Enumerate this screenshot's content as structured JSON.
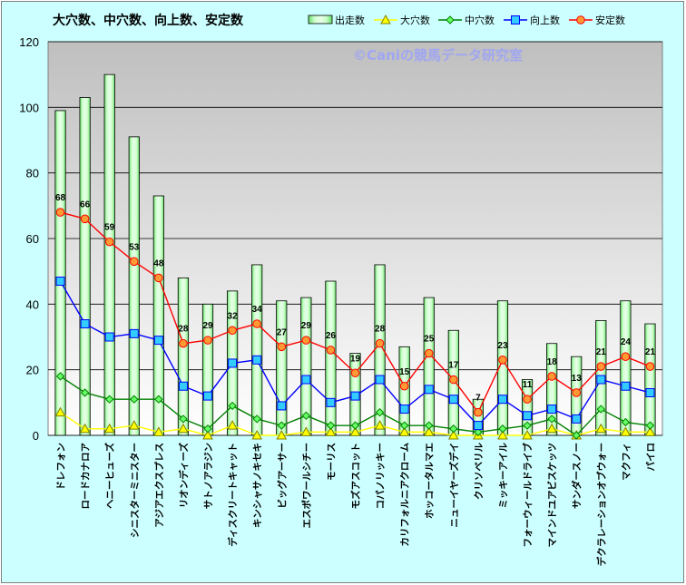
{
  "chart_data": {
    "type": "bar",
    "title": "大穴数、中穴数、向上数、安定数",
    "watermark": "©Caniの競馬データ研究室",
    "ylim": [
      0,
      120
    ],
    "yticks": [
      0,
      20,
      40,
      60,
      80,
      100,
      120
    ],
    "grid": true,
    "legend_position": "top-right",
    "categories": [
      "ドレフォン",
      "ロードカナロア",
      "ヘニーヒューズ",
      "シニスターミニスター",
      "アジアエクスプレス",
      "リオンディーズ",
      "サトノアラジン",
      "ディスクリートキャット",
      "キンシャサノキセキ",
      "ビッグアーサー",
      "エスポワールシチー",
      "モーリス",
      "モズアスコット",
      "コパノリッキー",
      "カリフォルニアクローム",
      "ホッコータルマエ",
      "ニューイヤーズデイ",
      "クリソベリル",
      "ミッキーアイル",
      "フォーウィールドライブ",
      "マインドユアビスケッツ",
      "サンダースノー",
      "デクラレーションオブウォー",
      "マクフィ",
      "パイロ"
    ],
    "series": [
      {
        "name": "出走数",
        "kind": "bar",
        "color": "#ccffcc",
        "values": [
          99,
          103,
          110,
          91,
          73,
          48,
          40,
          44,
          52,
          41,
          42,
          47,
          25,
          52,
          27,
          42,
          32,
          11,
          41,
          17,
          28,
          24,
          35,
          41,
          34
        ]
      },
      {
        "name": "大穴数",
        "kind": "line",
        "color": "#ffff00",
        "marker": "triangle",
        "values": [
          7,
          2,
          2,
          3,
          1,
          2,
          0,
          3,
          0,
          0,
          1,
          1,
          1,
          3,
          1,
          1,
          0,
          0,
          0,
          0,
          2,
          0,
          2,
          1,
          1
        ]
      },
      {
        "name": "中穴数",
        "kind": "line",
        "color": "#008000",
        "marker": "diamond",
        "values": [
          18,
          13,
          11,
          11,
          11,
          5,
          2,
          9,
          5,
          3,
          6,
          3,
          3,
          7,
          3,
          3,
          2,
          1,
          2,
          3,
          5,
          0,
          8,
          4,
          3
        ]
      },
      {
        "name": "向上数",
        "kind": "line",
        "color": "#0000ff",
        "marker": "square",
        "values": [
          47,
          34,
          30,
          31,
          29,
          15,
          12,
          22,
          23,
          9,
          17,
          10,
          12,
          17,
          8,
          14,
          11,
          3,
          11,
          6,
          8,
          5,
          17,
          15,
          13
        ]
      },
      {
        "name": "安定数",
        "kind": "line",
        "color": "#ff0000",
        "marker": "circle",
        "values": [
          68,
          66,
          59,
          53,
          48,
          28,
          29,
          32,
          34,
          27,
          29,
          26,
          19,
          28,
          15,
          25,
          17,
          7,
          23,
          11,
          18,
          13,
          21,
          24,
          21
        ]
      }
    ]
  }
}
